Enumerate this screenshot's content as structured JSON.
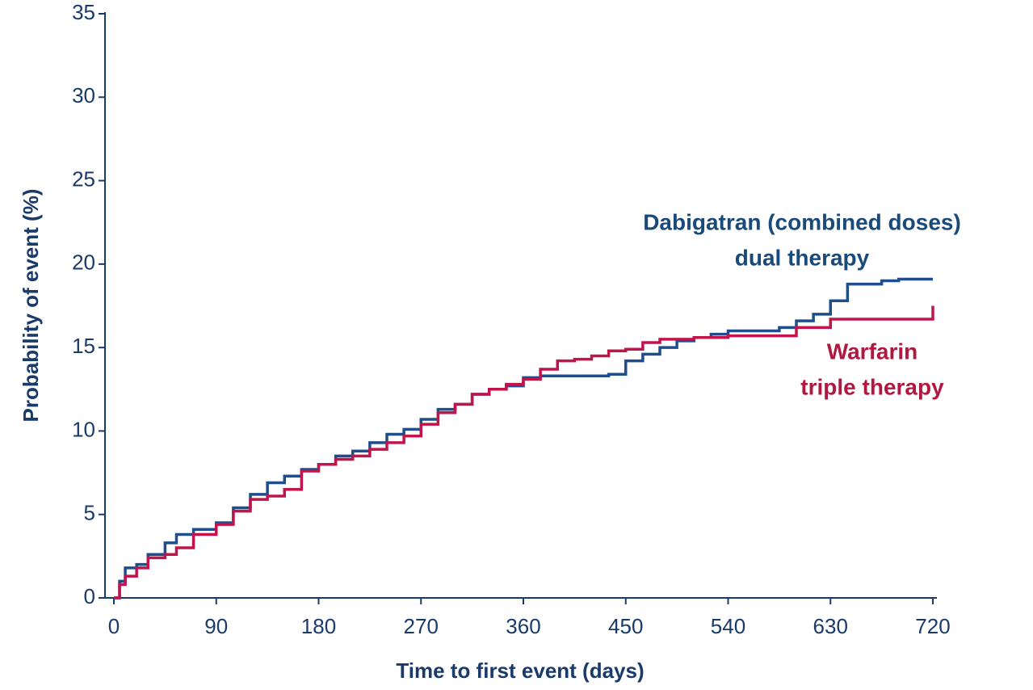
{
  "chart_data": {
    "type": "line",
    "step": true,
    "x_label": "Time to first event (days)",
    "y_label": "Probability of event (%)",
    "x": [
      0,
      5,
      10,
      20,
      30,
      45,
      55,
      70,
      90,
      105,
      120,
      135,
      150,
      165,
      180,
      195,
      210,
      225,
      240,
      255,
      270,
      285,
      300,
      315,
      330,
      345,
      360,
      375,
      390,
      405,
      420,
      435,
      450,
      465,
      480,
      495,
      510,
      525,
      540,
      555,
      570,
      585,
      600,
      615,
      630,
      645,
      660,
      675,
      690,
      705,
      720
    ],
    "series": [
      {
        "name": "Dabigatran (combined doses) dual therapy",
        "color": "#1f4e8c",
        "values": [
          0,
          1,
          1.8,
          2,
          2.6,
          3.3,
          3.8,
          4.1,
          4.5,
          5.4,
          6.2,
          6.9,
          7.3,
          7.7,
          8.0,
          8.5,
          8.8,
          9.3,
          9.8,
          10.1,
          10.7,
          11.3,
          11.6,
          12.2,
          12.5,
          12.7,
          13.2,
          13.3,
          13.3,
          13.3,
          13.3,
          13.4,
          14.2,
          14.6,
          15.0,
          15.4,
          15.6,
          15.8,
          16.0,
          16.0,
          16.0,
          16.2,
          16.6,
          17.0,
          17.8,
          18.8,
          18.8,
          19.0,
          19.1,
          19.1,
          19.1
        ]
      },
      {
        "name": "Warfarin triple therapy",
        "color": "#c0144a",
        "values": [
          0,
          0.8,
          1.3,
          1.8,
          2.4,
          2.6,
          3.0,
          3.8,
          4.4,
          5.2,
          5.9,
          6.1,
          6.5,
          7.6,
          8.0,
          8.3,
          8.5,
          8.9,
          9.3,
          9.7,
          10.4,
          11.1,
          11.6,
          12.2,
          12.5,
          12.8,
          13.1,
          13.7,
          14.2,
          14.3,
          14.5,
          14.8,
          14.9,
          15.3,
          15.5,
          15.5,
          15.6,
          15.6,
          15.7,
          15.7,
          15.7,
          15.7,
          16.2,
          16.2,
          16.7,
          16.7,
          16.7,
          16.7,
          16.7,
          16.7,
          17.5
        ]
      }
    ],
    "annotations": [
      {
        "lines": [
          "Dabigatran (combined doses)",
          "dual therapy"
        ],
        "color": "#1a4a7a"
      },
      {
        "lines": [
          "Warfarin",
          "triple therapy"
        ],
        "color": "#b0183f"
      }
    ],
    "xlim": [
      0,
      720
    ],
    "xticks": [
      0,
      90,
      180,
      270,
      360,
      450,
      540,
      630,
      720
    ],
    "ylim": [
      0,
      35
    ],
    "yticks": [
      0,
      5,
      10,
      15,
      20,
      25,
      30,
      35
    ]
  }
}
